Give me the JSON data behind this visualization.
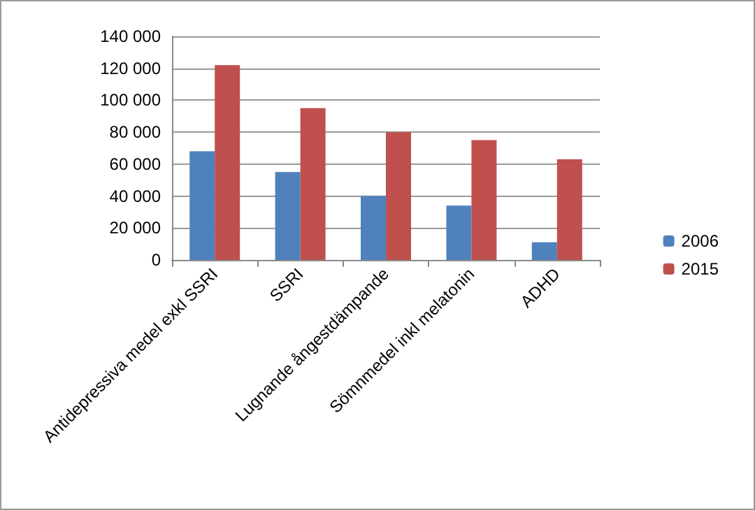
{
  "chart_data": {
    "type": "bar",
    "categories": [
      "Antidepressiva medel exkl SSRI",
      "SSRI",
      "Lugnande ångestdämpande",
      "Sömnmedel inkl melatonin",
      "ADHD"
    ],
    "series": [
      {
        "name": "2006",
        "color": "#4f81bd",
        "values": [
          68000,
          55000,
          40000,
          34000,
          11000
        ]
      },
      {
        "name": "2015",
        "color": "#c0504d",
        "values": [
          122000,
          95000,
          80000,
          75000,
          63000
        ]
      }
    ],
    "ylim": [
      0,
      140000
    ],
    "yticks": [
      {
        "value": 0,
        "label": "0"
      },
      {
        "value": 20000,
        "label": "20 000"
      },
      {
        "value": 40000,
        "label": "40 000"
      },
      {
        "value": 60000,
        "label": "60 000"
      },
      {
        "value": 80000,
        "label": "80 000"
      },
      {
        "value": 100000,
        "label": "100 000"
      },
      {
        "value": 120000,
        "label": "120 000"
      },
      {
        "value": 140000,
        "label": "140 000"
      }
    ],
    "grid": true,
    "legend": "right"
  }
}
